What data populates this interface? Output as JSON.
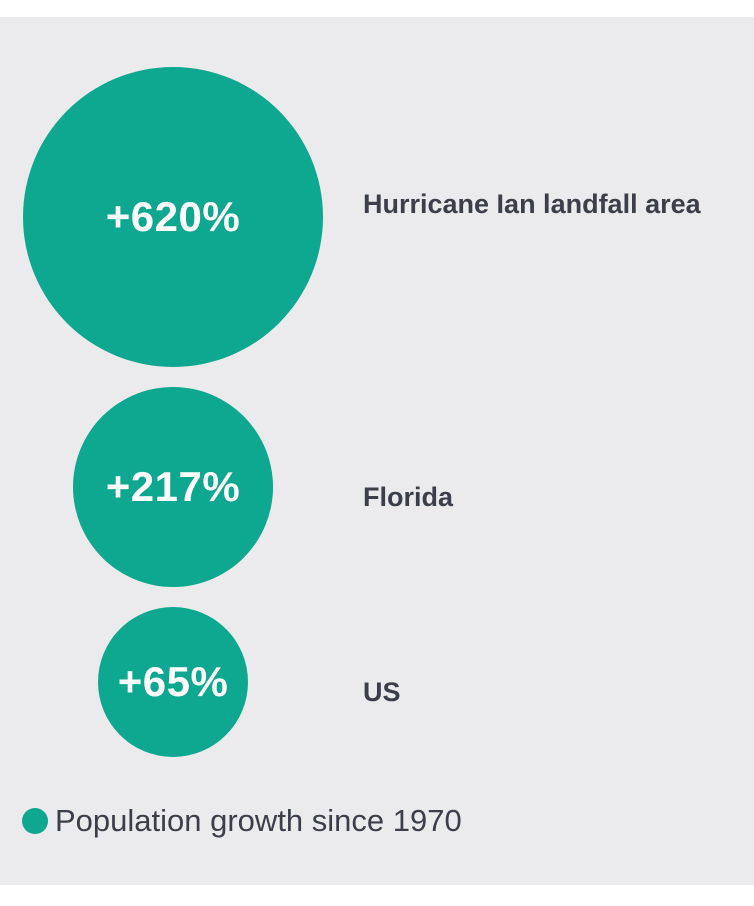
{
  "chart_data": {
    "type": "bubble",
    "categories": [
      "Hurricane Ian landfall area",
      "Florida",
      "US"
    ],
    "values": [
      620,
      217,
      65
    ],
    "value_labels": [
      "+620%",
      "+217%",
      "+65%"
    ],
    "unit": "%",
    "color": "#0da88f",
    "legend": {
      "label": "Population growth since 1970",
      "placement": "bottom-left"
    }
  }
}
